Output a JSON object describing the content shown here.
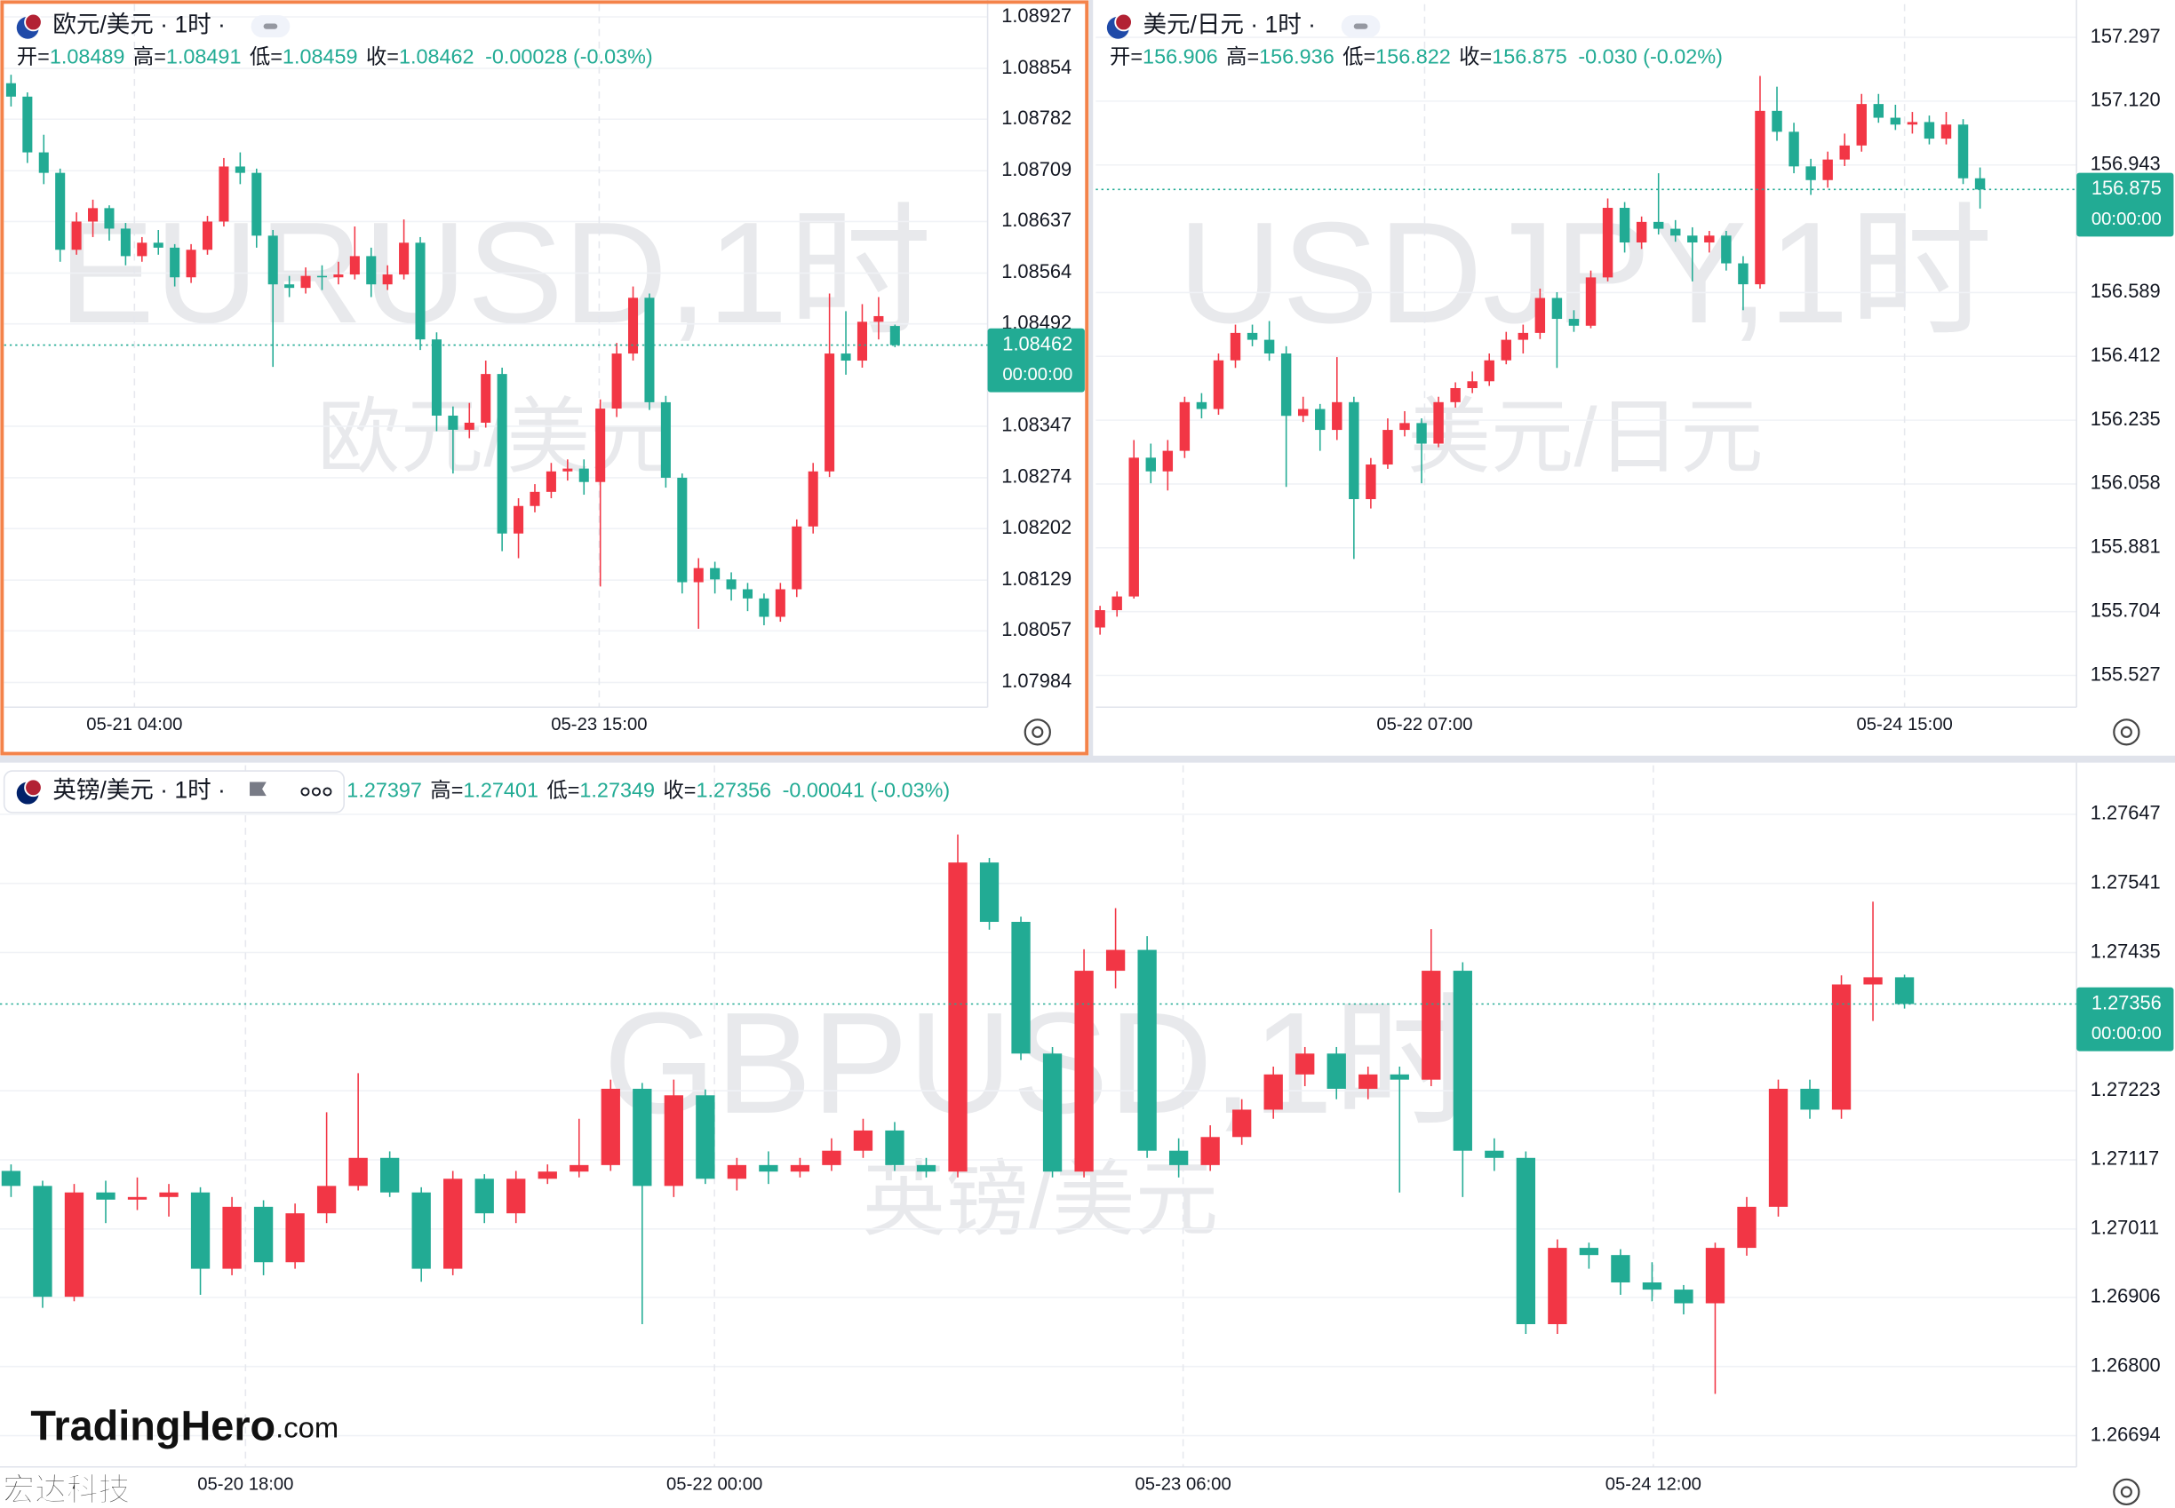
{
  "chart_data": [
    {
      "type": "candlestick",
      "symbol": "欧元/美元 · 1时 ·",
      "watermark": "EURUSD,1时",
      "watermark_sub": "欧元/美元",
      "header_labels": [
        "开=",
        "高=",
        "低=",
        "收="
      ],
      "change": "-0.00028 (-0.03%)",
      "countdown": "00:00:00",
      "up_color": "#f23645",
      "down_color": "#22ab94",
      "grid": true,
      "ylim": [
        1.07949,
        1.08945
      ],
      "yticks": [
        1.08927,
        1.08854,
        1.08782,
        1.08709,
        1.08637,
        1.08564,
        1.08492,
        1.08347,
        1.08274,
        1.08202,
        1.08129,
        1.08057,
        1.07984
      ],
      "xlim": [
        -0.42,
        59.66
      ],
      "xticks": [
        {
          "value": 7.54,
          "label": "05-21 04:00"
        },
        {
          "value": 35.93,
          "label": "05-23 15:00"
        }
      ],
      "ohlc": [
        [
          1.08833,
          1.08845,
          1.088,
          1.08814
        ],
        [
          1.08814,
          1.0882,
          1.0872,
          1.08735
        ],
        [
          1.08735,
          1.0876,
          1.0869,
          1.08706
        ],
        [
          1.08706,
          1.08712,
          1.0858,
          1.08597
        ],
        [
          1.08597,
          1.0865,
          1.0859,
          1.08637
        ],
        [
          1.08637,
          1.08668,
          1.08615,
          1.08656
        ],
        [
          1.08656,
          1.0866,
          1.0861,
          1.08627
        ],
        [
          1.08627,
          1.08635,
          1.08575,
          1.08588
        ],
        [
          1.08588,
          1.08615,
          1.0858,
          1.08607
        ],
        [
          1.08607,
          1.08625,
          1.0859,
          1.086
        ],
        [
          1.086,
          1.08605,
          1.08545,
          1.08558
        ],
        [
          1.08558,
          1.08605,
          1.0855,
          1.08597
        ],
        [
          1.08597,
          1.08645,
          1.0859,
          1.08637
        ],
        [
          1.08637,
          1.08727,
          1.0863,
          1.08715
        ],
        [
          1.08715,
          1.08735,
          1.0869,
          1.08706
        ],
        [
          1.08706,
          1.08712,
          1.086,
          1.08617
        ],
        [
          1.08617,
          1.08625,
          1.08431,
          1.08548
        ],
        [
          1.08548,
          1.0856,
          1.0853,
          1.08543
        ],
        [
          1.08543,
          1.08572,
          1.08535,
          1.0856
        ],
        [
          1.0856,
          1.08575,
          1.0854,
          1.08558
        ],
        [
          1.08558,
          1.0858,
          1.08548,
          1.08562
        ],
        [
          1.08562,
          1.0863,
          1.08555,
          1.08588
        ],
        [
          1.08588,
          1.086,
          1.0853,
          1.08548
        ],
        [
          1.08548,
          1.08575,
          1.0854,
          1.08562
        ],
        [
          1.08562,
          1.0864,
          1.08555,
          1.08607
        ],
        [
          1.08607,
          1.08615,
          1.08455,
          1.0847
        ],
        [
          1.0847,
          1.0848,
          1.0834,
          1.08362
        ],
        [
          1.08362,
          1.08375,
          1.0828,
          1.08342
        ],
        [
          1.08342,
          1.0838,
          1.0833,
          1.08352
        ],
        [
          1.08352,
          1.0844,
          1.08345,
          1.08421
        ],
        [
          1.08421,
          1.0843,
          1.0817,
          1.08195
        ],
        [
          1.08195,
          1.08245,
          1.0816,
          1.08234
        ],
        [
          1.08234,
          1.08265,
          1.08225,
          1.08254
        ],
        [
          1.08254,
          1.08295,
          1.08245,
          1.08283
        ],
        [
          1.08283,
          1.083,
          1.0827,
          1.08287
        ],
        [
          1.08287,
          1.083,
          1.0825,
          1.08268
        ],
        [
          1.08268,
          1.08385,
          1.0812,
          1.08372
        ],
        [
          1.08372,
          1.08465,
          1.0836,
          1.0845
        ],
        [
          1.0845,
          1.08545,
          1.0844,
          1.08529
        ],
        [
          1.08529,
          1.08535,
          1.0837,
          1.08381
        ],
        [
          1.08381,
          1.0839,
          1.0826,
          1.08274
        ],
        [
          1.08274,
          1.0828,
          1.0811,
          1.08126
        ],
        [
          1.08126,
          1.0816,
          1.0806,
          1.08146
        ],
        [
          1.08146,
          1.08155,
          1.0811,
          1.0813
        ],
        [
          1.0813,
          1.0814,
          1.081,
          1.08116
        ],
        [
          1.08116,
          1.08125,
          1.08085,
          1.08103
        ],
        [
          1.08103,
          1.0811,
          1.08065,
          1.08077
        ],
        [
          1.08077,
          1.08125,
          1.0807,
          1.08116
        ],
        [
          1.08116,
          1.08215,
          1.08105,
          1.08205
        ],
        [
          1.08205,
          1.08295,
          1.08195,
          1.08283
        ],
        [
          1.08283,
          1.08535,
          1.08275,
          1.0845
        ],
        [
          1.0845,
          1.0851,
          1.0842,
          1.0844
        ],
        [
          1.0844,
          1.0852,
          1.0843,
          1.08495
        ],
        [
          1.08495,
          1.0853,
          1.0847,
          1.08503
        ],
        [
          1.08489,
          1.08491,
          1.08459,
          1.08462
        ]
      ]
    },
    {
      "type": "candlestick",
      "symbol": "美元/日元 · 1时 ·",
      "watermark": "USDJPY,1时",
      "watermark_sub": "美元/日元",
      "header_labels": [
        "开=",
        "高=",
        "低=",
        "收="
      ],
      "change": "-0.030 (-0.02%)",
      "countdown": "00:00:00",
      "up_color": "#f23645",
      "down_color": "#22ab94",
      "grid": true,
      "ylim": [
        155.439,
        157.389
      ],
      "yticks": [
        157.297,
        {
          "value": 157.12,
          "label": "157.120"
        },
        156.943,
        156.589,
        156.412,
        156.235,
        156.058,
        155.881,
        155.704,
        155.527
      ],
      "xlim": [
        -0.25,
        57.7
      ],
      "xticks": [
        {
          "value": 19.18,
          "label": "05-22 07:00"
        },
        {
          "value": 47.54,
          "label": "05-24 15:00"
        }
      ],
      "ohlc": [
        [
          155.66,
          155.72,
          155.64,
          155.708
        ],
        [
          155.708,
          155.76,
          155.69,
          155.746
        ],
        [
          155.746,
          156.18,
          155.74,
          156.131
        ],
        [
          156.131,
          156.17,
          156.06,
          156.093
        ],
        [
          156.093,
          156.18,
          156.04,
          156.15
        ],
        [
          156.15,
          156.3,
          156.13,
          156.285
        ],
        [
          156.285,
          156.31,
          156.24,
          156.266
        ],
        [
          156.266,
          156.42,
          156.25,
          156.401
        ],
        [
          156.401,
          156.5,
          156.38,
          156.477
        ],
        [
          156.477,
          156.5,
          156.44,
          156.458
        ],
        [
          156.458,
          156.51,
          156.4,
          156.42
        ],
        [
          156.42,
          156.44,
          156.05,
          156.247
        ],
        [
          156.247,
          156.3,
          156.23,
          156.266
        ],
        [
          156.266,
          156.28,
          156.15,
          156.208
        ],
        [
          156.208,
          156.41,
          156.18,
          156.285
        ],
        [
          156.285,
          156.3,
          155.85,
          156.016
        ],
        [
          156.016,
          156.13,
          155.99,
          156.112
        ],
        [
          156.112,
          156.24,
          156.1,
          156.208
        ],
        [
          156.208,
          156.26,
          156.19,
          156.227
        ],
        [
          156.227,
          156.24,
          156.06,
          156.17
        ],
        [
          156.17,
          156.3,
          156.16,
          156.285
        ],
        [
          156.285,
          156.34,
          156.27,
          156.324
        ],
        [
          156.324,
          156.37,
          156.31,
          156.343
        ],
        [
          156.343,
          156.42,
          156.33,
          156.401
        ],
        [
          156.401,
          156.48,
          156.39,
          156.458
        ],
        [
          156.458,
          156.5,
          156.42,
          156.477
        ],
        [
          156.477,
          156.6,
          156.46,
          156.574
        ],
        [
          156.574,
          156.59,
          156.38,
          156.516
        ],
        [
          156.516,
          156.54,
          156.48,
          156.497
        ],
        [
          156.497,
          156.65,
          156.49,
          156.631
        ],
        [
          156.631,
          156.85,
          156.62,
          156.824
        ],
        [
          156.824,
          156.84,
          156.7,
          156.728
        ],
        [
          156.728,
          156.8,
          156.71,
          156.785
        ],
        [
          156.785,
          156.92,
          156.75,
          156.766
        ],
        [
          156.766,
          156.79,
          156.73,
          156.747
        ],
        [
          156.747,
          156.77,
          156.62,
          156.728
        ],
        [
          156.728,
          156.76,
          156.7,
          156.747
        ],
        [
          156.747,
          156.76,
          156.65,
          156.67
        ],
        [
          156.67,
          156.69,
          156.54,
          156.612
        ],
        [
          156.612,
          157.19,
          156.6,
          157.093
        ],
        [
          157.093,
          157.16,
          157.01,
          157.035
        ],
        [
          157.035,
          157.06,
          156.92,
          156.939
        ],
        [
          156.939,
          156.96,
          156.86,
          156.901
        ],
        [
          156.901,
          156.98,
          156.88,
          156.958
        ],
        [
          156.958,
          157.03,
          156.94,
          156.997
        ],
        [
          156.997,
          157.14,
          156.98,
          157.112
        ],
        [
          157.112,
          157.14,
          157.06,
          157.074
        ],
        [
          157.074,
          157.11,
          157.04,
          157.055
        ],
        [
          157.055,
          157.09,
          157.03,
          157.062
        ],
        [
          157.062,
          157.08,
          157.0,
          157.016
        ],
        [
          157.016,
          157.09,
          157.0,
          157.055
        ],
        [
          157.055,
          157.07,
          156.89,
          156.906
        ],
        [
          156.906,
          156.936,
          156.822,
          156.875
        ]
      ]
    },
    {
      "type": "candlestick",
      "symbol": "英镑/美元 · 1时 ·",
      "watermark": "GBPUSD,1时",
      "watermark_sub": "英镑/美元",
      "header_labels": [
        null,
        "高=",
        "低=",
        "收="
      ],
      "change": "-0.00041 (-0.03%)",
      "countdown": "00:00:00",
      "up_color": "#f23645",
      "down_color": "#22ab94",
      "grid": true,
      "ylim": [
        1.26646,
        1.27722
      ],
      "yticks": [
        1.27647,
        1.27541,
        1.27435,
        1.27223,
        1.27117,
        1.27011,
        1.26906,
        {
          "value": 1.268,
          "label": "1.26800"
        },
        1.26694
      ],
      "xlim": [
        -0.35,
        65.45
      ],
      "xticks": [
        {
          "value": 7.43,
          "label": "05-20 18:00"
        },
        {
          "value": 22.29,
          "label": "05-22 00:00"
        },
        {
          "value": 37.14,
          "label": "05-23 06:00"
        },
        {
          "value": 52.04,
          "label": "05-24 12:00"
        }
      ],
      "ohlc": [
        [
          1.271,
          1.2711,
          1.2706,
          1.27077
        ],
        [
          1.27077,
          1.27085,
          1.2689,
          1.26907
        ],
        [
          1.26907,
          1.2708,
          1.269,
          1.27067
        ],
        [
          1.27067,
          1.27085,
          1.2702,
          1.27056
        ],
        [
          1.27056,
          1.2709,
          1.2704,
          1.2706
        ],
        [
          1.2706,
          1.2708,
          1.2703,
          1.27067
        ],
        [
          1.27067,
          1.27075,
          1.2691,
          1.2695
        ],
        [
          1.2695,
          1.2706,
          1.2694,
          1.27045
        ],
        [
          1.27045,
          1.27055,
          1.2694,
          1.2696
        ],
        [
          1.2696,
          1.2705,
          1.2695,
          1.27035
        ],
        [
          1.27035,
          1.2719,
          1.2702,
          1.27077
        ],
        [
          1.27077,
          1.2725,
          1.2707,
          1.2712
        ],
        [
          1.2712,
          1.2713,
          1.2706,
          1.27067
        ],
        [
          1.27067,
          1.27075,
          1.2693,
          1.2695
        ],
        [
          1.2695,
          1.271,
          1.2694,
          1.27088
        ],
        [
          1.27088,
          1.27095,
          1.2702,
          1.27035
        ],
        [
          1.27035,
          1.271,
          1.2702,
          1.27088
        ],
        [
          1.27088,
          1.2711,
          1.2708,
          1.27099
        ],
        [
          1.27099,
          1.2718,
          1.2709,
          1.27109
        ],
        [
          1.27109,
          1.2724,
          1.271,
          1.27226
        ],
        [
          1.27226,
          1.27235,
          1.26865,
          1.27077
        ],
        [
          1.27077,
          1.2724,
          1.2706,
          1.27216
        ],
        [
          1.27216,
          1.27225,
          1.2708,
          1.27088
        ],
        [
          1.27088,
          1.2712,
          1.2707,
          1.27109
        ],
        [
          1.27109,
          1.2713,
          1.2708,
          1.27099
        ],
        [
          1.27099,
          1.2712,
          1.2709,
          1.27109
        ],
        [
          1.27109,
          1.2715,
          1.271,
          1.27131
        ],
        [
          1.27131,
          1.2718,
          1.2712,
          1.27162
        ],
        [
          1.27162,
          1.27175,
          1.271,
          1.27109
        ],
        [
          1.27109,
          1.2712,
          1.2709,
          1.27099
        ],
        [
          1.27099,
          1.27616,
          1.2709,
          1.27573
        ],
        [
          1.27573,
          1.2758,
          1.2747,
          1.27482
        ],
        [
          1.27482,
          1.2749,
          1.2727,
          1.2728
        ],
        [
          1.2728,
          1.2729,
          1.2709,
          1.27099
        ],
        [
          1.27099,
          1.2744,
          1.2709,
          1.27407
        ],
        [
          1.27407,
          1.27503,
          1.2738,
          1.27439
        ],
        [
          1.27439,
          1.2746,
          1.2712,
          1.27131
        ],
        [
          1.27131,
          1.2715,
          1.2709,
          1.27109
        ],
        [
          1.27109,
          1.2717,
          1.271,
          1.27152
        ],
        [
          1.27152,
          1.2721,
          1.2714,
          1.27194
        ],
        [
          1.27194,
          1.2726,
          1.2718,
          1.27248
        ],
        [
          1.27248,
          1.2729,
          1.2723,
          1.2728
        ],
        [
          1.2728,
          1.2729,
          1.2721,
          1.27226
        ],
        [
          1.27226,
          1.2726,
          1.2721,
          1.27248
        ],
        [
          1.27248,
          1.2726,
          1.27067,
          1.2724
        ],
        [
          1.2724,
          1.27471,
          1.2723,
          1.27407
        ],
        [
          1.27407,
          1.2742,
          1.2706,
          1.27131
        ],
        [
          1.27131,
          1.2715,
          1.271,
          1.2712
        ],
        [
          1.2712,
          1.2713,
          1.2685,
          1.26865
        ],
        [
          1.26865,
          1.26995,
          1.2685,
          1.26982
        ],
        [
          1.26982,
          1.2699,
          1.2695,
          1.26971
        ],
        [
          1.26971,
          1.2698,
          1.2691,
          1.26929
        ],
        [
          1.26929,
          1.2696,
          1.269,
          1.26918
        ],
        [
          1.26918,
          1.26925,
          1.2688,
          1.26897
        ],
        [
          1.26897,
          1.2699,
          1.26758,
          1.26982
        ],
        [
          1.26982,
          1.2706,
          1.2697,
          1.27045
        ],
        [
          1.27045,
          1.2724,
          1.2703,
          1.27226
        ],
        [
          1.27226,
          1.2724,
          1.2718,
          1.27194
        ],
        [
          1.27194,
          1.274,
          1.2718,
          1.27386
        ],
        [
          1.27386,
          1.27513,
          1.2733,
          1.27397
        ],
        [
          1.27397,
          1.27401,
          1.27349,
          1.27356
        ]
      ]
    }
  ],
  "branding": {
    "logo": "TradingHero",
    "logo_suffix": ".com",
    "footer": "宏达科技"
  }
}
